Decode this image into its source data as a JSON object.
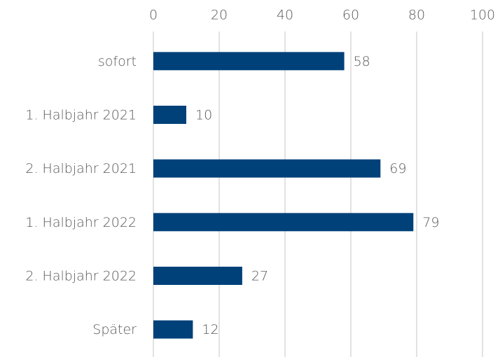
{
  "chart_data": {
    "type": "hbar",
    "categories": [
      "sofort",
      "1. Halbjahr 2021",
      "2. Halbjahr 2021",
      "1. Halbjahr 2022",
      "2. Halbjahr 2022",
      "Später"
    ],
    "values": [
      58,
      10,
      69,
      79,
      27,
      12
    ],
    "color": "#00417a",
    "xlim": [
      0,
      100
    ],
    "xticks": [
      0,
      20,
      40,
      60,
      80,
      100
    ],
    "grid": true,
    "xaxis_position": "top"
  }
}
